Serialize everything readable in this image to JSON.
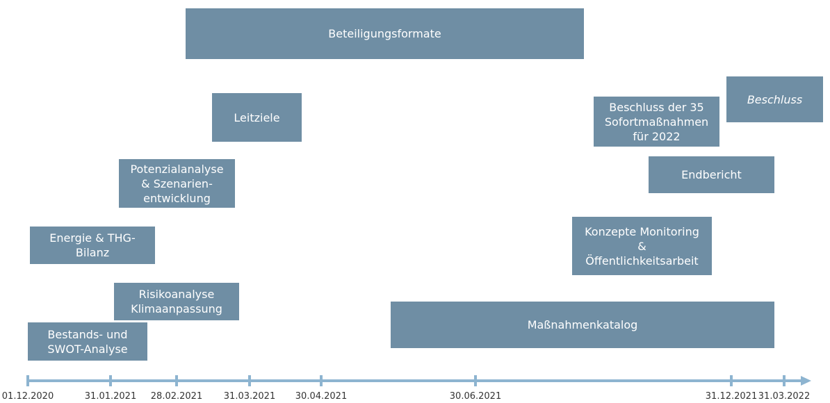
{
  "timeline": {
    "dates": [
      "01.12.2020",
      "31.01.2021",
      "28.02.2021",
      "31.03.2021",
      "30.04.2021",
      "30.06.2021",
      "31.12.2021",
      "31.03.2022"
    ]
  },
  "boxes": [
    {
      "lines": [
        "Beteiligungsformate"
      ]
    },
    {
      "lines": [
        "Leitziele"
      ]
    },
    {
      "lines": [
        "Potenzialanalyse",
        "& Szenarien-",
        "entwicklung"
      ]
    },
    {
      "lines": [
        "Energie & THG-",
        "Bilanz"
      ]
    },
    {
      "lines": [
        "Risikoanalyse",
        "Klimaanpassung"
      ]
    },
    {
      "lines": [
        "Bestands- und",
        "SWOT-Analyse"
      ]
    },
    {
      "lines": [
        "Maßnahmenkatalog"
      ]
    },
    {
      "lines": [
        "Konzepte Monitoring",
        "&",
        "Öffentlichkeitsarbeit"
      ]
    },
    {
      "lines": [
        "Endbericht"
      ]
    },
    {
      "lines": [
        "Beschluss der 35",
        "Sofortmaßnahmen",
        "für 2022"
      ]
    },
    {
      "lines": [
        "Beschluss"
      ]
    }
  ]
}
